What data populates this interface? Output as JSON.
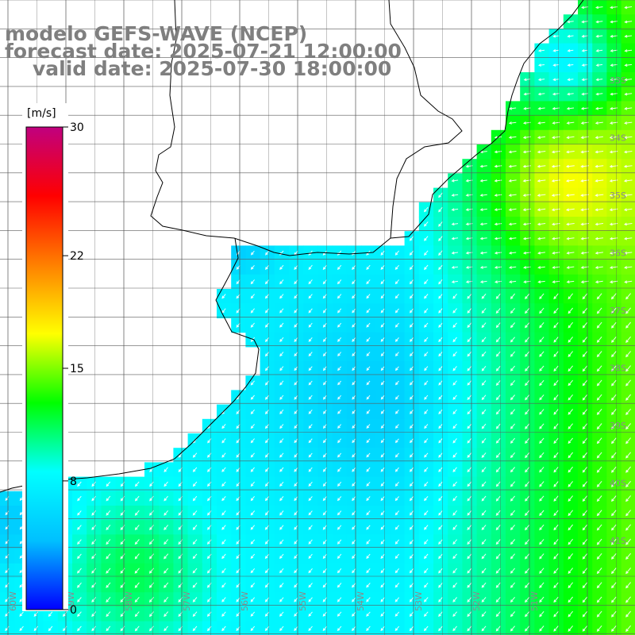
{
  "title": {
    "model": "modelo GEFS-WAVE (NCEP)",
    "forecast": "forecast date: 2025-07-21 12:00:00",
    "valid": "valid date: 2025-07-30 18:00:00"
  },
  "colorbar": {
    "unit": "[m/s]",
    "ticks": [
      "0",
      "8",
      "15",
      "22",
      "30"
    ],
    "stops": [
      "#0000ff",
      "#00c0ff",
      "#00ffff",
      "#00ff00",
      "#ffff00",
      "#ff8000",
      "#ff0000",
      "#c0007f"
    ]
  },
  "axes": {
    "lat_labels": [
      "33S",
      "34S",
      "35S",
      "36S",
      "37S",
      "38S",
      "39S",
      "40S",
      "41S"
    ],
    "lon_labels": [
      "60W",
      "59W",
      "58W",
      "57W",
      "56W",
      "55W",
      "54W",
      "53W",
      "52W",
      "51W"
    ]
  },
  "map_data": {
    "variable": "wind speed",
    "unit": "m/s",
    "wind_direction": "from north-east, arrows pointing south-west"
  }
}
